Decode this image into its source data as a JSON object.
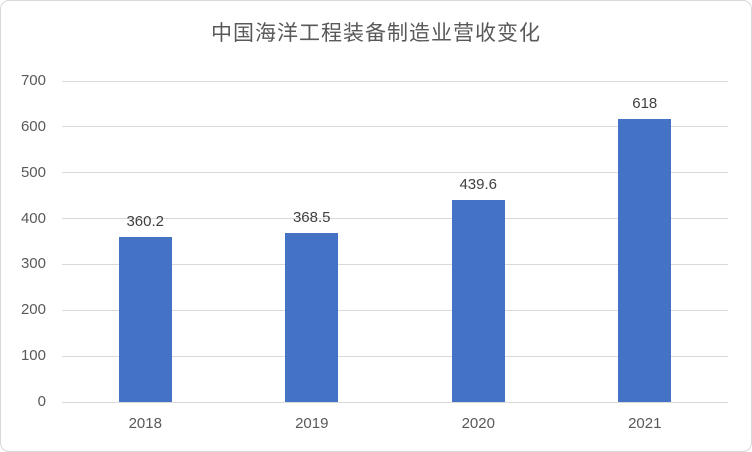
{
  "chart_data": {
    "type": "bar",
    "title": "中国海洋工程装备制造业营收变化",
    "categories": [
      "2018",
      "2019",
      "2020",
      "2021"
    ],
    "values": [
      360.2,
      368.5,
      439.6,
      618
    ],
    "value_labels": [
      "360.2",
      "368.5",
      "439.6",
      "618"
    ],
    "xlabel": "",
    "ylabel": "",
    "ylim": [
      0,
      700
    ],
    "ytick_step": 100,
    "ytick_labels": [
      "0",
      "100",
      "200",
      "300",
      "400",
      "500",
      "600",
      "700"
    ],
    "grid": true,
    "legend_position": "none",
    "colors": {
      "bar": "#4472c4",
      "gridline": "#d9d9d9",
      "axis_text": "#595959",
      "value_label_text": "#404040",
      "title_text": "#595959",
      "frame_border": "#d9d9d9",
      "background": "#ffffff"
    }
  }
}
